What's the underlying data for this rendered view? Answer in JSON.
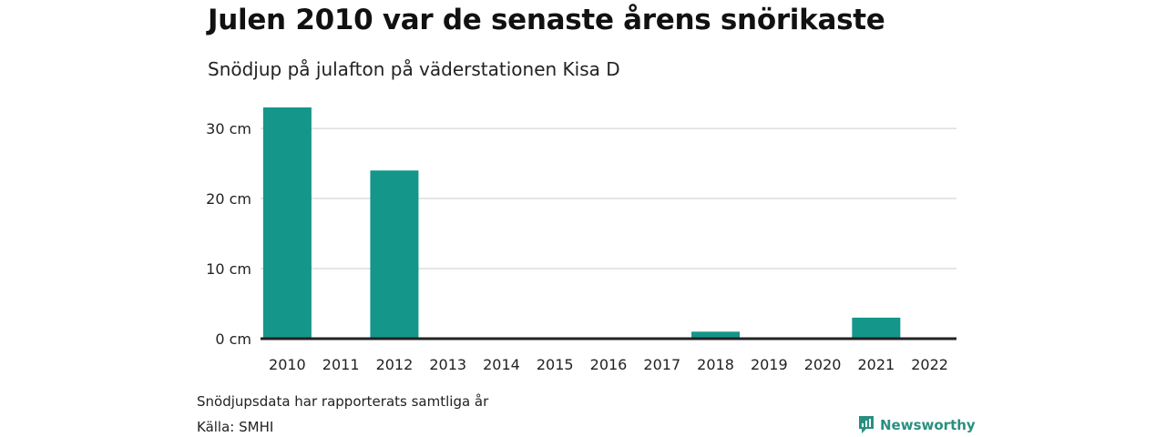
{
  "header": {
    "title": "Julen 2010 var de senaste årens snörikaste",
    "subtitle": "Snödjup på julafton på väderstationen Kisa D"
  },
  "footer": {
    "note": "Snödjupsdata har rapporterats samtliga år",
    "source": "Källa: SMHI",
    "brand": "Newsworthy",
    "brand_icon": "newsworthy-logo-icon"
  },
  "colors": {
    "bar": "#14968a",
    "grid": "#dddddd",
    "baseline": "#222222",
    "brand": "#2a8f80"
  },
  "chart_data": {
    "type": "bar",
    "categories": [
      "2010",
      "2011",
      "2012",
      "2013",
      "2014",
      "2015",
      "2016",
      "2017",
      "2018",
      "2019",
      "2020",
      "2021",
      "2022"
    ],
    "values": [
      33,
      0,
      24,
      0,
      0,
      0,
      0,
      0,
      1,
      0,
      0,
      3,
      0
    ],
    "ylim": [
      0,
      33
    ],
    "y_ticks": [
      0,
      10,
      20,
      30
    ],
    "y_tick_labels": [
      "0 cm",
      "10 cm",
      "20 cm",
      "30 cm"
    ],
    "grid": true,
    "legend": "none"
  }
}
